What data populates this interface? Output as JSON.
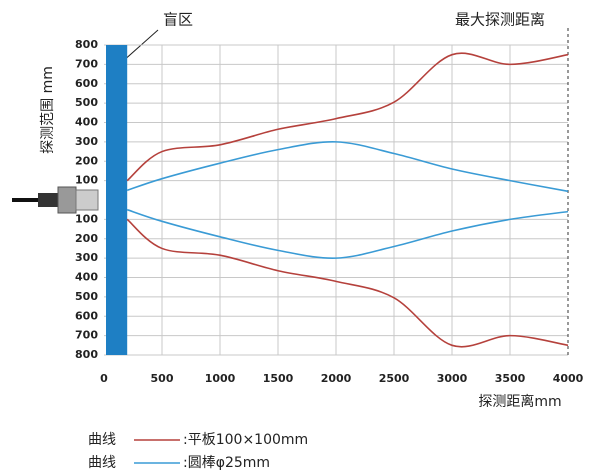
{
  "chart_data": {
    "type": "line",
    "annotations": {
      "blind_zone": "盲区",
      "max_distance": "最大探测距离"
    },
    "ylabel": "探测范围 mm",
    "xlabel": "探测距离mm",
    "legend_prefix": "曲线",
    "blind_zone_end": 200,
    "x": [
      200,
      500,
      1000,
      1500,
      2000,
      2500,
      3000,
      3500,
      4000
    ],
    "series": [
      {
        "name": ":平板100×100mm",
        "color": "#b5413c",
        "values": [
          100,
          250,
          285,
          365,
          420,
          505,
          750,
          700,
          750
        ],
        "lower": [
          -100,
          -250,
          -285,
          -365,
          -420,
          -505,
          -750,
          -700,
          -750
        ]
      },
      {
        "name": ":圆棒φ25mm",
        "color": "#3a9bd5",
        "values": [
          50,
          110,
          190,
          260,
          300,
          240,
          160,
          100,
          45
        ],
        "lower": [
          -50,
          -110,
          -190,
          -260,
          -300,
          -240,
          -160,
          -100,
          -60
        ]
      }
    ],
    "xlim": [
      0,
      4000
    ],
    "xticks": [
      0,
      500,
      1000,
      1500,
      2000,
      2500,
      3000,
      3500,
      4000
    ],
    "ylim": [
      -800,
      800
    ],
    "yticks": [
      {
        "value": 800,
        "label": "800"
      },
      {
        "value": 700,
        "label": "700"
      },
      {
        "value": 600,
        "label": "600"
      },
      {
        "value": 500,
        "label": "500"
      },
      {
        "value": 400,
        "label": "400"
      },
      {
        "value": 300,
        "label": "300"
      },
      {
        "value": 200,
        "label": "200"
      },
      {
        "value": 100,
        "label": "100"
      },
      {
        "value": -100,
        "label": "100"
      },
      {
        "value": -200,
        "label": "200"
      },
      {
        "value": -300,
        "label": "300"
      },
      {
        "value": -400,
        "label": "400"
      },
      {
        "value": -500,
        "label": "500"
      },
      {
        "value": -600,
        "label": "600"
      },
      {
        "value": -700,
        "label": "700"
      },
      {
        "value": -800,
        "label": "800"
      }
    ],
    "grid": true
  }
}
